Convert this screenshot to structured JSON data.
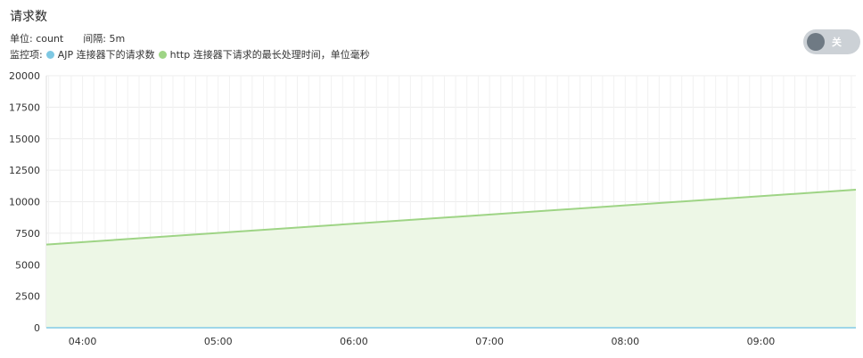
{
  "panel": {
    "title": "请求数",
    "unit_label": "单位: count",
    "interval_label": "间隔: 5m",
    "metrics_prefix": "监控项:",
    "toggle_label": "关"
  },
  "colors": {
    "series_ajp": "#7ec8e3",
    "series_http": "#9ed485",
    "series_http_fill": "#edf7e6",
    "toggle_bg": "#ccd1d6",
    "toggle_knob": "#6f7a84"
  },
  "chart_data": {
    "type": "area",
    "title": "请求数",
    "xlabel": "",
    "ylabel": "",
    "x": [
      "03:44",
      "09:42"
    ],
    "xticks": [
      "04:00",
      "05:00",
      "06:00",
      "07:00",
      "08:00",
      "09:00"
    ],
    "yticks": [
      "0",
      "2500",
      "5000",
      "7500",
      "10000",
      "12500",
      "15000",
      "17500",
      "20000"
    ],
    "ylim": [
      0,
      20000
    ],
    "grid": true,
    "legend_position": "top-left",
    "series": [
      {
        "name": "AJP 连接器下的请求数",
        "values": [
          0,
          0
        ]
      },
      {
        "name": "http 连接器下请求的最长处理时间，单位毫秒",
        "values": [
          6600,
          10950
        ]
      }
    ]
  }
}
